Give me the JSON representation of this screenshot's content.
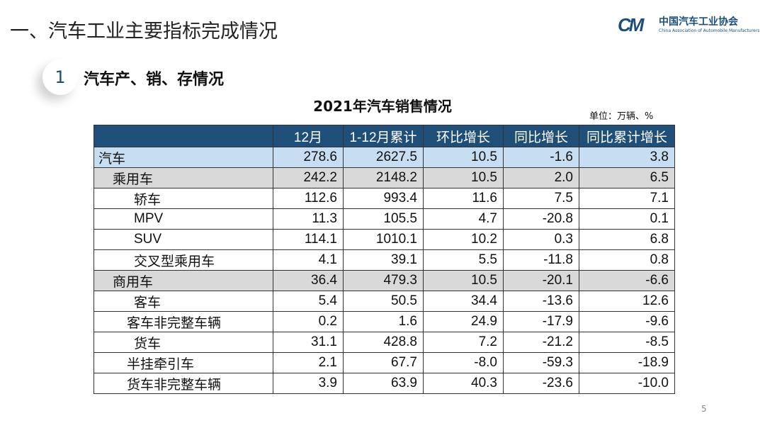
{
  "slide": {
    "title": "一、汽车工业主要指标完成情况",
    "section_number": "1",
    "section_title": "汽车产、销、存情况",
    "page_number": "5"
  },
  "logo": {
    "mark": "CM",
    "name_cn": "中国汽车工业协会",
    "name_en": "China Association of Automobile Manufacturers"
  },
  "table": {
    "title": "2021年汽车销售情况",
    "unit": "单位：万辆、%",
    "headers": [
      "",
      "12月",
      "1-12月累计",
      "环比增长",
      "同比增长",
      "同比累计增长"
    ],
    "rows": [
      {
        "name": "汽车",
        "level": 0,
        "values": [
          "278.6",
          "2627.5",
          "10.5",
          "-1.6",
          "3.8"
        ]
      },
      {
        "name": "乘用车",
        "level": 1,
        "values": [
          "242.2",
          "2148.2",
          "10.5",
          "2.0",
          "6.5"
        ]
      },
      {
        "name": "轿车",
        "level": 2,
        "values": [
          "112.6",
          "993.4",
          "11.6",
          "7.5",
          "7.1"
        ]
      },
      {
        "name": "MPV",
        "level": 2,
        "values": [
          "11.3",
          "105.5",
          "4.7",
          "-20.8",
          "0.1"
        ]
      },
      {
        "name": "SUV",
        "level": 2,
        "values": [
          "114.1",
          "1010.1",
          "10.2",
          "0.3",
          "6.8"
        ]
      },
      {
        "name": "交叉型乘用车",
        "level": 2,
        "values": [
          "4.1",
          "39.1",
          "5.5",
          "-11.8",
          "0.8"
        ]
      },
      {
        "name": "商用车",
        "level": 1,
        "values": [
          "36.4",
          "479.3",
          "10.5",
          "-20.1",
          "-6.6"
        ]
      },
      {
        "name": "客车",
        "level": 3,
        "values": [
          "5.4",
          "50.5",
          "34.4",
          "-13.6",
          "12.6"
        ]
      },
      {
        "name": "客车非完整车辆",
        "level": 4,
        "values": [
          "0.2",
          "1.6",
          "24.9",
          "-17.9",
          "-9.6"
        ]
      },
      {
        "name": "货车",
        "level": 3,
        "values": [
          "31.1",
          "428.8",
          "7.2",
          "-21.2",
          "-8.5"
        ]
      },
      {
        "name": "半挂牵引车",
        "level": 4,
        "values": [
          "2.1",
          "67.7",
          "-8.0",
          "-59.3",
          "-18.9"
        ]
      },
      {
        "name": "货车非完整车辆",
        "level": 4,
        "values": [
          "3.9",
          "63.9",
          "40.3",
          "-23.6",
          "-10.0"
        ]
      }
    ]
  },
  "colors": {
    "header": "#1f4e79",
    "total_row": "#c7ddf2",
    "subtotal_row": "#d9d9d9"
  }
}
